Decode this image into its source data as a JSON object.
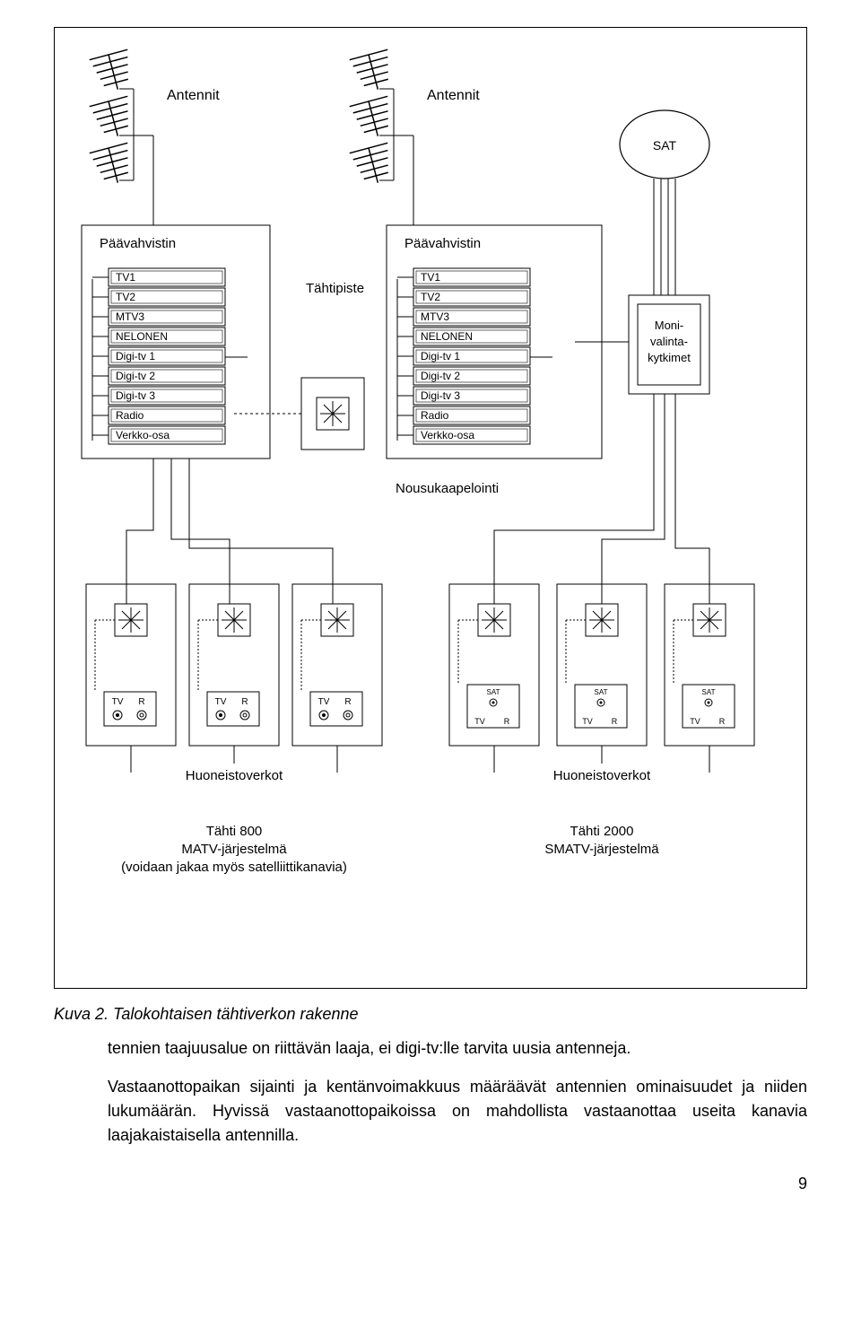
{
  "colors": {
    "stroke": "#000000",
    "bg": "#ffffff",
    "label_bg": "#ffffff"
  },
  "fonts": {
    "label_size": 14,
    "small_size": 10,
    "tiny_size": 8,
    "caption_size": 18,
    "body_size": 18
  },
  "antennas": {
    "label_left": "Antennit",
    "label_right": "Antennit"
  },
  "sat_label": "SAT",
  "amplifier_label": "Päävahvistin",
  "channels": [
    "TV1",
    "TV2",
    "MTV3",
    "NELONEN",
    "Digi-tv 1",
    "Digi-tv 2",
    "Digi-tv 3",
    "Radio",
    "Verkko-osa"
  ],
  "star_point_label": "Tähtipiste",
  "multiswitch_label": [
    "Moni-",
    "valinta-",
    "kytkimet"
  ],
  "riser_label": "Nousukaapelointi",
  "outlet_tv": "TV",
  "outlet_r": "R",
  "outlet_sat": "SAT",
  "apartment_networks_label": "Huoneistoverkot",
  "left_system": {
    "line1": "Tähti 800",
    "line2": "MATV-järjestelmä",
    "line3": "(voidaan jakaa myös satelliittikanavia)"
  },
  "right_system": {
    "line1": "Tähti 2000",
    "line2": "SMATV-järjestelmä"
  },
  "caption": "Kuva 2. Talokohtaisen tähtiverkon rakenne",
  "paragraph1": "tennien taajuusalue on riittävän laaja, ei digi-tv:lle tarvita uusia antenneja.",
  "paragraph2": "Vastaanottopaikan sijainti ja kentänvoimakkuus määräävät antennien ominaisuudet ja niiden lukumäärän. Hyvissä vastaanottopaikoissa on mahdollista vastaanottaa useita kanavia laajakaistaisella antennilla.",
  "page_number": "9"
}
